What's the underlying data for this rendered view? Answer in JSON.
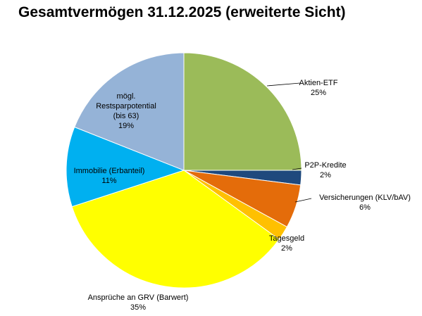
{
  "chart_data": {
    "type": "pie",
    "title": "Gesamtvermögen 31.12.2025 (erweiterte Sicht)",
    "slices": [
      {
        "label": "Aktien-ETF",
        "value": 25,
        "value_label": "25%",
        "color": "#9BBB59"
      },
      {
        "label": "P2P-Kredite",
        "value": 2,
        "value_label": "2%",
        "color": "#1F497D"
      },
      {
        "label": "Versicherungen (KLV/bAV)",
        "value": 6,
        "value_label": "6%",
        "color": "#E46C0A"
      },
      {
        "label": "Tagesgeld",
        "value": 2,
        "value_label": "2%",
        "color": "#FFC000"
      },
      {
        "label": "Ansprüche an GRV (Barwert)",
        "value": 35,
        "value_label": "35%",
        "color": "#FFFF00"
      },
      {
        "label": "Immobilie (Erbanteil)",
        "value": 11,
        "value_label": "11%",
        "color": "#00B0F0"
      },
      {
        "label": "mögl. Restsparpotential (bis 63)",
        "label_lines": [
          "mögl.",
          "Restsparpotential",
          "(bis 63)"
        ],
        "value": 19,
        "value_label": "19%",
        "color": "#95B3D7"
      }
    ],
    "legend": "none"
  }
}
